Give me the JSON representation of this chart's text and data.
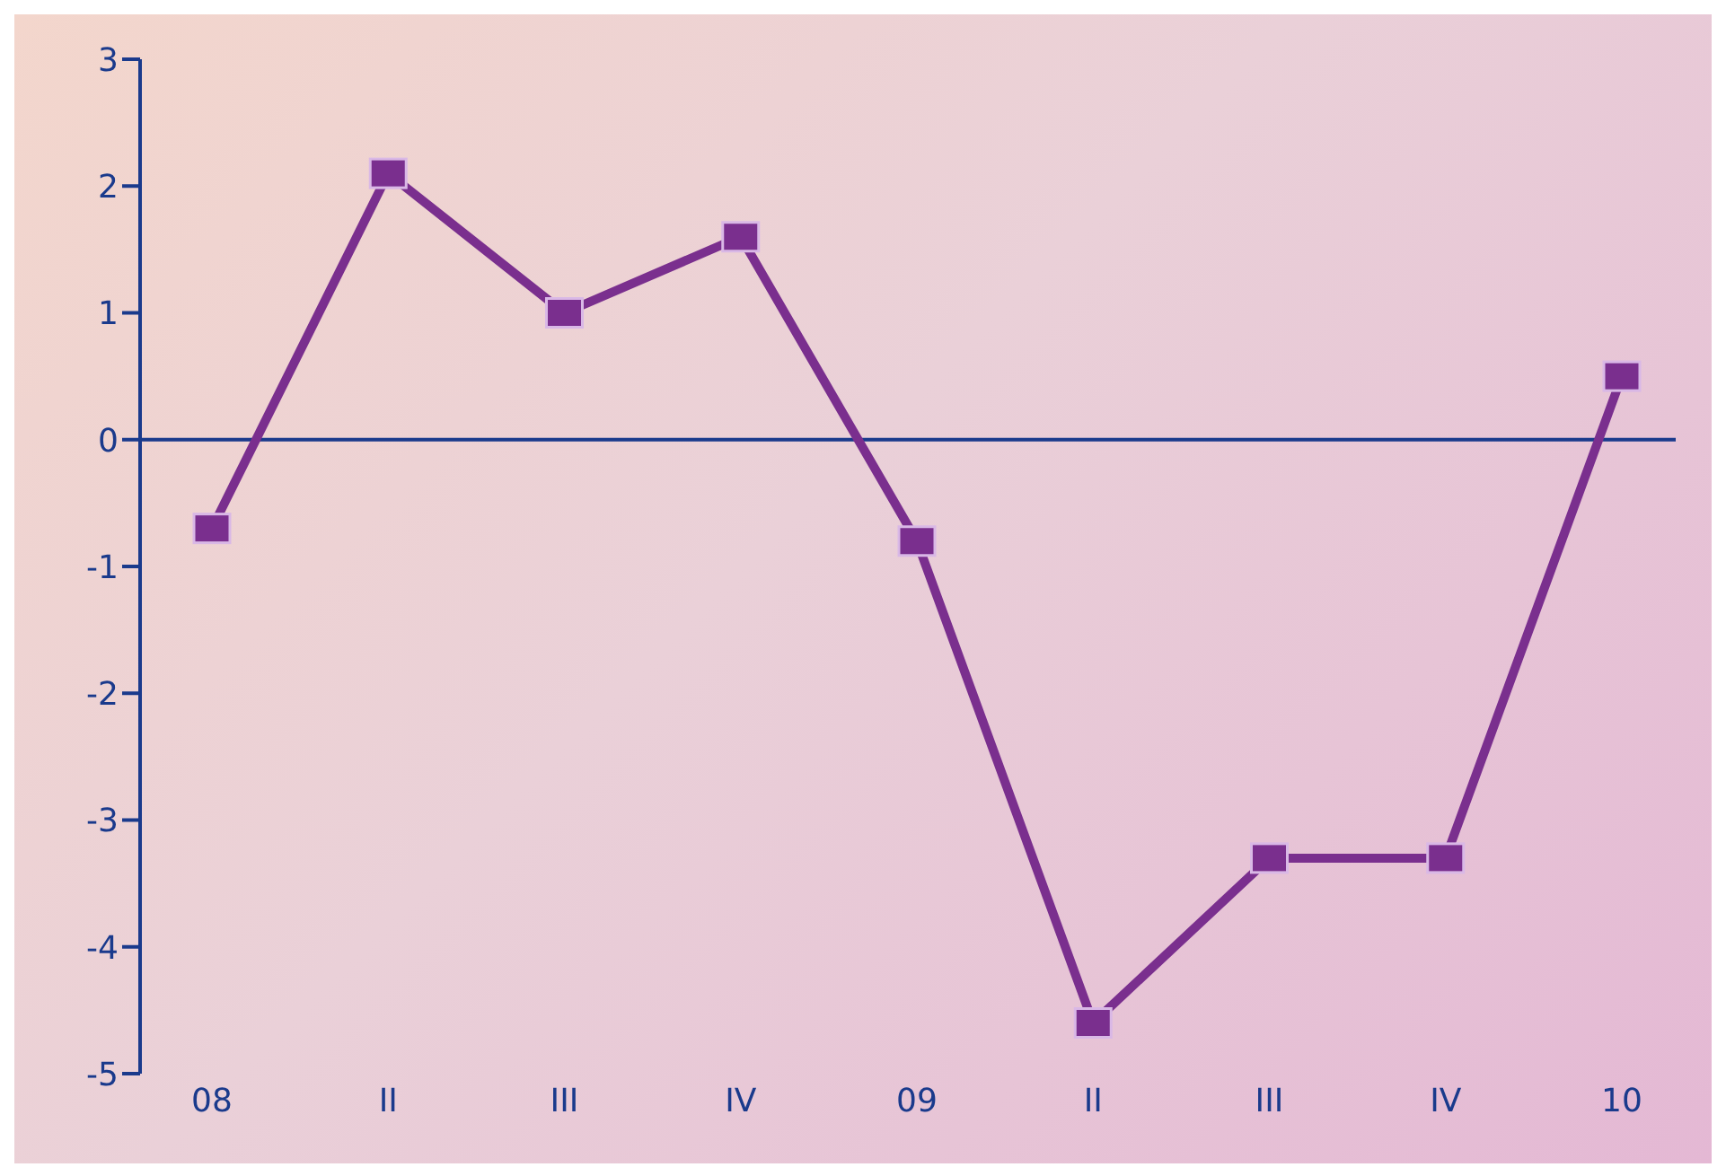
{
  "chart_data": {
    "type": "line",
    "categories": [
      "08",
      "II",
      "III",
      "IV",
      "09",
      "II",
      "III",
      "IV",
      "10"
    ],
    "series": [
      {
        "color": "#7a2f8e",
        "values": [
          -0.7,
          2.1,
          1.0,
          1.6,
          -0.8,
          -4.6,
          -3.3,
          -3.3,
          0.5
        ]
      }
    ],
    "ylim": [
      -5,
      3
    ],
    "yticks": [
      -5,
      -4,
      -3,
      -2,
      -1,
      0,
      1,
      2,
      3
    ],
    "marker": "square",
    "line_style": "solid",
    "ref_lines": [
      {
        "axis": "y",
        "value": 0,
        "color": "#1a3a8c"
      }
    ]
  }
}
